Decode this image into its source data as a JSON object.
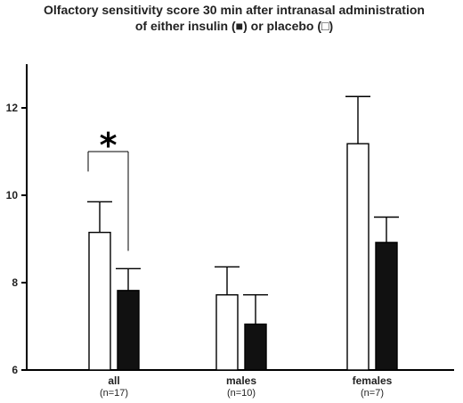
{
  "chart_data": {
    "type": "bar",
    "title": "Olfactory sensitivity score 30 min after intranasal administration",
    "subtitle": "of either insulin (■) or placebo (□)",
    "xlabel": "",
    "ylabel": "",
    "ylim": [
      6,
      13
    ],
    "yticks": [
      6,
      8,
      10,
      12
    ],
    "grid": false,
    "categories": [
      "all",
      "males",
      "females"
    ],
    "category_sublabels": [
      "(n=17)",
      "(n=10)",
      "(n=7)"
    ],
    "series": [
      {
        "values": [
          9.15,
          7.72,
          11.18
        ],
        "errors": [
          0.7,
          0.64,
          1.08
        ],
        "fill": "#ffffff",
        "stroke": "#000000"
      },
      {
        "values": [
          7.82,
          7.05,
          8.92
        ],
        "errors": [
          0.5,
          0.67,
          0.58
        ],
        "fill": "#111111",
        "stroke": "#000000"
      }
    ],
    "annotation": {
      "text": "*",
      "category": "all"
    }
  }
}
